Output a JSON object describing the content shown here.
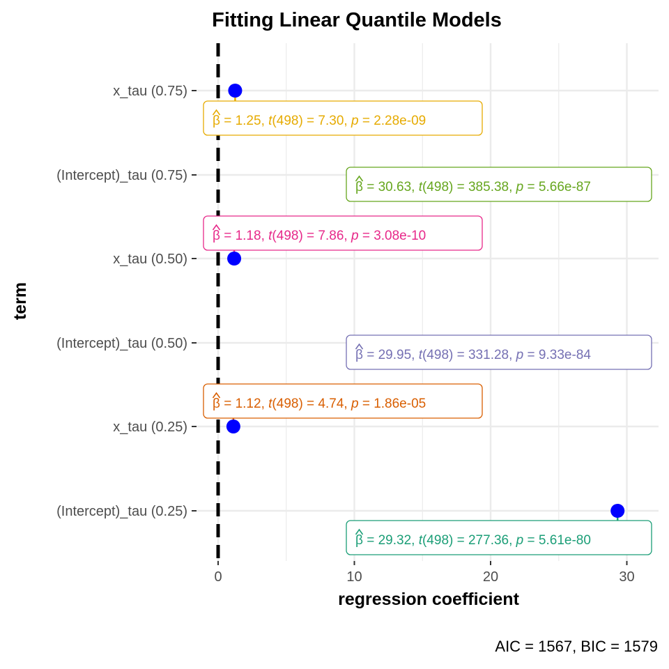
{
  "chart_data": {
    "type": "scatter",
    "title": "Fitting Linear Quantile Models",
    "xlabel": "regression coefficient",
    "ylabel": "term",
    "caption": "AIC = 1567, BIC = 1579",
    "xlim": [
      0,
      32
    ],
    "xticks": [
      "0",
      "10",
      "20",
      "30"
    ],
    "xtick_values": [
      0,
      10,
      20,
      30
    ],
    "reference_line_x": 0,
    "grid": true,
    "point_color": "#0000FF",
    "terms": [
      {
        "term": "(Intercept)_tau (0.25)",
        "estimate": 29.32,
        "df": "498",
        "t": "277.36",
        "p": "5.61e-80",
        "beta_text": "29.32",
        "color": "#1B9E77"
      },
      {
        "term": "x_tau (0.25)",
        "estimate": 1.12,
        "df": "498",
        "t": "4.74",
        "p": "1.86e-05",
        "beta_text": "1.12",
        "color": "#D95F02"
      },
      {
        "term": "(Intercept)_tau (0.50)",
        "estimate": 29.95,
        "df": "498",
        "t": "331.28",
        "p": "9.33e-84",
        "beta_text": "29.95",
        "color": "#7570B3"
      },
      {
        "term": "x_tau (0.50)",
        "estimate": 1.18,
        "df": "498",
        "t": "7.86",
        "p": "3.08e-10",
        "beta_text": "1.18",
        "color": "#E7298A"
      },
      {
        "term": "(Intercept)_tau (0.75)",
        "estimate": 30.63,
        "df": "498",
        "t": "385.38",
        "p": "5.66e-87",
        "beta_text": "30.63",
        "color": "#66A61E"
      },
      {
        "term": "x_tau (0.75)",
        "estimate": 1.25,
        "df": "498",
        "t": "7.30",
        "p": "2.28e-09",
        "beta_text": "1.25",
        "color": "#E6AB02"
      }
    ]
  }
}
